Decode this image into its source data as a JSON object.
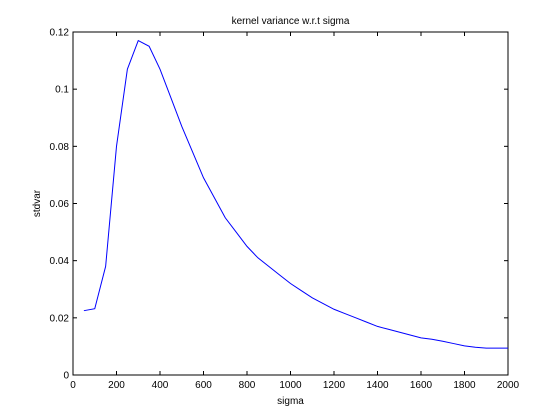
{
  "chart_data": {
    "type": "line",
    "title": "kernel variance w.r.t sigma",
    "xlabel": "sigma",
    "ylabel": "stdvar",
    "xlim": [
      0,
      2000
    ],
    "ylim": [
      0,
      0.12
    ],
    "xticks": [
      0,
      200,
      400,
      600,
      800,
      1000,
      1200,
      1400,
      1600,
      1800,
      2000
    ],
    "yticks": [
      0,
      0.02,
      0.04,
      0.06,
      0.08,
      0.1,
      0.12
    ],
    "grid": false,
    "line_color": "#0000ff",
    "series": [
      {
        "x": [
          50,
          100,
          150,
          200,
          250,
          300,
          350,
          400,
          450,
          500,
          550,
          600,
          650,
          700,
          750,
          800,
          850,
          900,
          950,
          1000,
          1050,
          1100,
          1150,
          1200,
          1250,
          1300,
          1350,
          1400,
          1450,
          1500,
          1550,
          1600,
          1650,
          1700,
          1750,
          1800,
          1850,
          1900,
          1950,
          2000
        ],
        "values": [
          0.0225,
          0.0232,
          0.038,
          0.08,
          0.107,
          0.117,
          0.115,
          0.107,
          0.097,
          0.087,
          0.078,
          0.069,
          0.062,
          0.055,
          0.05,
          0.045,
          0.041,
          0.038,
          0.035,
          0.032,
          0.0295,
          0.027,
          0.025,
          0.023,
          0.0215,
          0.02,
          0.0185,
          0.017,
          0.016,
          0.015,
          0.014,
          0.013,
          0.0125,
          0.0118,
          0.011,
          0.0102,
          0.0097,
          0.0094,
          0.0094,
          0.0094
        ]
      }
    ]
  }
}
